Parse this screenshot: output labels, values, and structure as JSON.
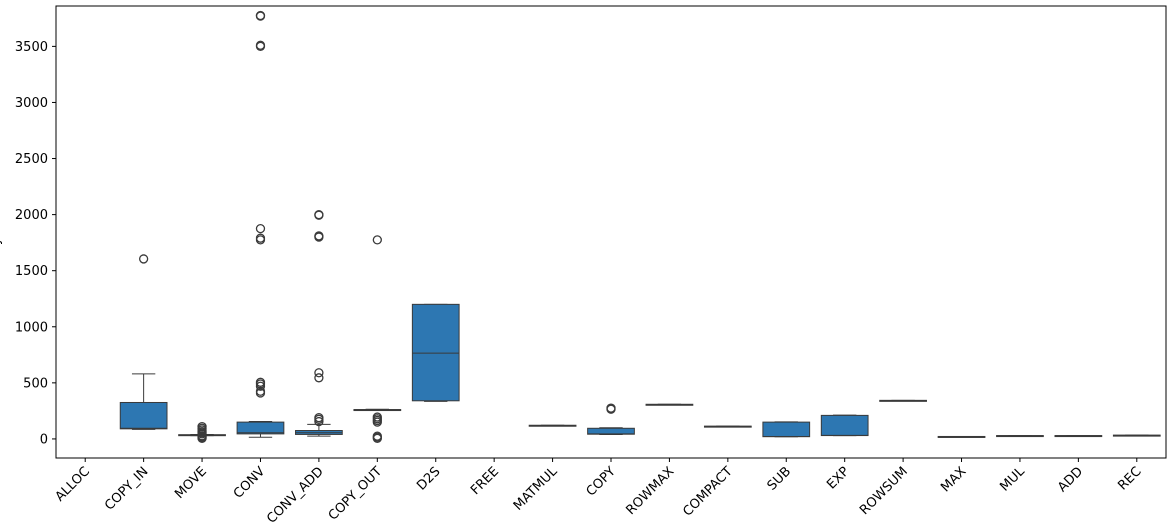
{
  "chart_data": {
    "type": "box",
    "title": "",
    "xlabel": "",
    "ylabel": "cycles",
    "ylim": [
      -170,
      3860
    ],
    "yticks": [
      0,
      500,
      1000,
      1500,
      2000,
      2500,
      3000,
      3500
    ],
    "grid": false,
    "box_color": "#2d77b2",
    "categories": [
      "ALLOC",
      "COPY_IN",
      "MOVE",
      "CONV",
      "CONV_ADD",
      "COPY_OUT",
      "D2S",
      "FREE",
      "MATMUL",
      "COPY",
      "ROWMAX",
      "COMPACT",
      "SUB",
      "EXP",
      "ROWSUM",
      "MAX",
      "MUL",
      "ADD",
      "REC"
    ],
    "boxes": [
      null,
      {
        "whislo": 85,
        "q1": 90,
        "med": 95,
        "q3": 325,
        "whishi": 580,
        "fliers": [
          1605
        ]
      },
      {
        "whislo": 30,
        "q1": 32,
        "med": 35,
        "q3": 38,
        "whishi": 40,
        "fliers": [
          5,
          12,
          20,
          28,
          45,
          55,
          65,
          80,
          95,
          110
        ]
      },
      {
        "whislo": 15,
        "q1": 45,
        "med": 55,
        "q3": 150,
        "whishi": 155,
        "fliers": [
          410,
          425,
          470,
          490,
          505,
          1775,
          1790,
          1875,
          3500,
          3510,
          3770,
          3775
        ]
      },
      {
        "whislo": 25,
        "q1": 40,
        "med": 55,
        "q3": 75,
        "whishi": 130,
        "fliers": [
          155,
          175,
          190,
          545,
          590,
          1800,
          1810,
          1995,
          2000
        ]
      },
      {
        "whislo": 255,
        "q1": 258,
        "med": 260,
        "q3": 262,
        "whishi": 265,
        "fliers": [
          5,
          15,
          25,
          150,
          165,
          180,
          195,
          1775
        ]
      },
      {
        "whislo": 335,
        "q1": 340,
        "med": 765,
        "q3": 1200,
        "whishi": 1200,
        "fliers": []
      },
      null,
      {
        "whislo": 118,
        "q1": 118,
        "med": 120,
        "q3": 122,
        "whishi": 122,
        "fliers": []
      },
      {
        "whislo": 40,
        "q1": 42,
        "med": 45,
        "q3": 95,
        "whishi": 100,
        "fliers": [
          265,
          275
        ]
      },
      {
        "whislo": 305,
        "q1": 305,
        "med": 307,
        "q3": 309,
        "whishi": 309,
        "fliers": []
      },
      {
        "whislo": 110,
        "q1": 110,
        "med": 112,
        "q3": 114,
        "whishi": 114,
        "fliers": []
      },
      {
        "whislo": 20,
        "q1": 20,
        "med": 22,
        "q3": 150,
        "whishi": 152,
        "fliers": []
      },
      {
        "whislo": 30,
        "q1": 30,
        "med": 32,
        "q3": 210,
        "whishi": 212,
        "fliers": []
      },
      {
        "whislo": 340,
        "q1": 340,
        "med": 342,
        "q3": 344,
        "whishi": 344,
        "fliers": []
      },
      {
        "whislo": 18,
        "q1": 18,
        "med": 20,
        "q3": 22,
        "whishi": 22,
        "fliers": []
      },
      {
        "whislo": 25,
        "q1": 25,
        "med": 28,
        "q3": 30,
        "whishi": 30,
        "fliers": []
      },
      {
        "whislo": 25,
        "q1": 25,
        "med": 28,
        "q3": 30,
        "whishi": 30,
        "fliers": []
      },
      {
        "whislo": 30,
        "q1": 30,
        "med": 32,
        "q3": 34,
        "whishi": 34,
        "fliers": []
      }
    ]
  }
}
